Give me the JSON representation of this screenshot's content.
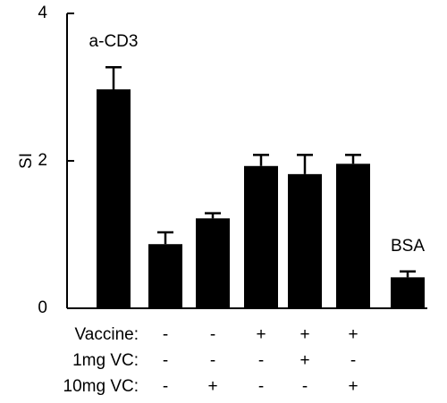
{
  "chart_data": {
    "type": "bar",
    "y_label": "SI",
    "categories": [
      "a-CD3",
      null,
      null,
      null,
      null,
      null,
      "BSA"
    ],
    "values": [
      2.97,
      0.87,
      1.22,
      1.93,
      1.82,
      1.96,
      0.42
    ],
    "errors": [
      0.3,
      0.16,
      0.07,
      0.15,
      0.26,
      0.12,
      0.08
    ],
    "color": "#000000",
    "ylim": [
      0,
      4
    ],
    "yticks": [
      0,
      2,
      4
    ],
    "condition_rows": [
      {
        "label": "Vaccine:",
        "marks": [
          null,
          "-",
          "-",
          "+",
          "+",
          "+",
          null
        ]
      },
      {
        "label": "1mg VC:",
        "marks": [
          null,
          "-",
          "-",
          "-",
          "+",
          "-",
          null
        ]
      },
      {
        "label": "10mg VC:",
        "marks": [
          null,
          "-",
          "+",
          "-",
          "-",
          "+",
          null
        ]
      }
    ]
  }
}
